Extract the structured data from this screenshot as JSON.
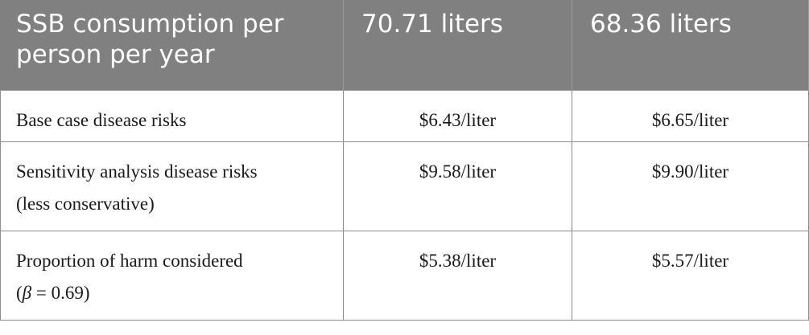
{
  "table": {
    "headers": [
      "SSB consumption per person per year",
      "70.71 liters",
      "68.36 liters"
    ],
    "rows": [
      {
        "label_lines": [
          "Base case disease risks"
        ],
        "values": [
          "$6.43/liter",
          "$6.65/liter"
        ]
      },
      {
        "label_lines": [
          "Sensitivity analysis disease risks",
          "(less conservative)"
        ],
        "values": [
          "$9.58/liter",
          "$9.90/liter"
        ]
      },
      {
        "label_lines": [
          "Proportion of harm considered"
        ],
        "label_beta_prefix": "(",
        "label_beta_symbol": "β",
        "label_beta_suffix": " = 0.69)",
        "values": [
          "$5.38/liter",
          "$5.57/liter"
        ]
      }
    ]
  }
}
